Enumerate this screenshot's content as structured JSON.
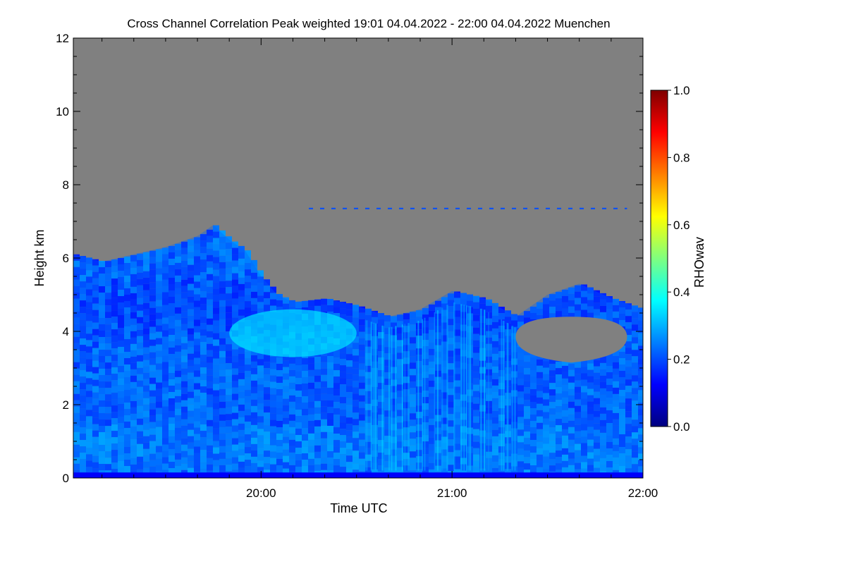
{
  "chart_data": {
    "type": "heatmap",
    "title": "Cross Channel Correlation Peak weighted   19:01 04.04.2022 - 22:00 04.04.2022 Muenchen",
    "xlabel": "Time UTC",
    "ylabel": "Height km",
    "colorbar_label": "RHOwav",
    "xlim": [
      "19:01",
      "22:00"
    ],
    "ylim": [
      0,
      12
    ],
    "x_ticks": [
      "20:00",
      "21:00",
      "22:00"
    ],
    "y_ticks": [
      "0",
      "2",
      "4",
      "6",
      "8",
      "10",
      "12"
    ],
    "colorbar_range": [
      0.0,
      1.0
    ],
    "colorbar_ticks": [
      "0.0",
      "0.2",
      "0.4",
      "0.6",
      "0.8",
      "1.0"
    ],
    "colormap": [
      "#00007f",
      "#0000ff",
      "#007fff",
      "#00ffff",
      "#7fff7f",
      "#ffff00",
      "#ff7f00",
      "#ff0000",
      "#7f0000"
    ],
    "no_data_color": "#808080",
    "cloud_top_km": [
      {
        "time": "19:01",
        "top": 6.1
      },
      {
        "time": "19:10",
        "top": 5.9
      },
      {
        "time": "19:20",
        "top": 6.1
      },
      {
        "time": "19:30",
        "top": 6.3
      },
      {
        "time": "19:40",
        "top": 6.6
      },
      {
        "time": "19:45",
        "top": 6.9
      },
      {
        "time": "19:50",
        "top": 6.5
      },
      {
        "time": "19:55",
        "top": 6.2
      },
      {
        "time": "20:00",
        "top": 5.5
      },
      {
        "time": "20:05",
        "top": 5.0
      },
      {
        "time": "20:10",
        "top": 4.8
      },
      {
        "time": "20:20",
        "top": 4.9
      },
      {
        "time": "20:30",
        "top": 4.7
      },
      {
        "time": "20:40",
        "top": 4.4
      },
      {
        "time": "20:50",
        "top": 4.6
      },
      {
        "time": "21:00",
        "top": 5.1
      },
      {
        "time": "21:10",
        "top": 4.9
      },
      {
        "time": "21:20",
        "top": 4.4
      },
      {
        "time": "21:30",
        "top": 5.0
      },
      {
        "time": "21:40",
        "top": 5.3
      },
      {
        "time": "21:50",
        "top": 4.9
      },
      {
        "time": "22:00",
        "top": 4.6
      }
    ],
    "bright_region": {
      "time_start": "19:50",
      "time_end": "20:30",
      "height_min": 3.3,
      "height_max": 4.6,
      "value": 0.35
    },
    "background_value": 0.22,
    "gap_region": {
      "time_start": "21:20",
      "time_end": "21:55",
      "height_min": 3.3,
      "height_max": 4.4
    },
    "thin_layer": {
      "time_start": "20:15",
      "time_end": "21:55",
      "height": 7.35,
      "value": 0.2
    }
  }
}
